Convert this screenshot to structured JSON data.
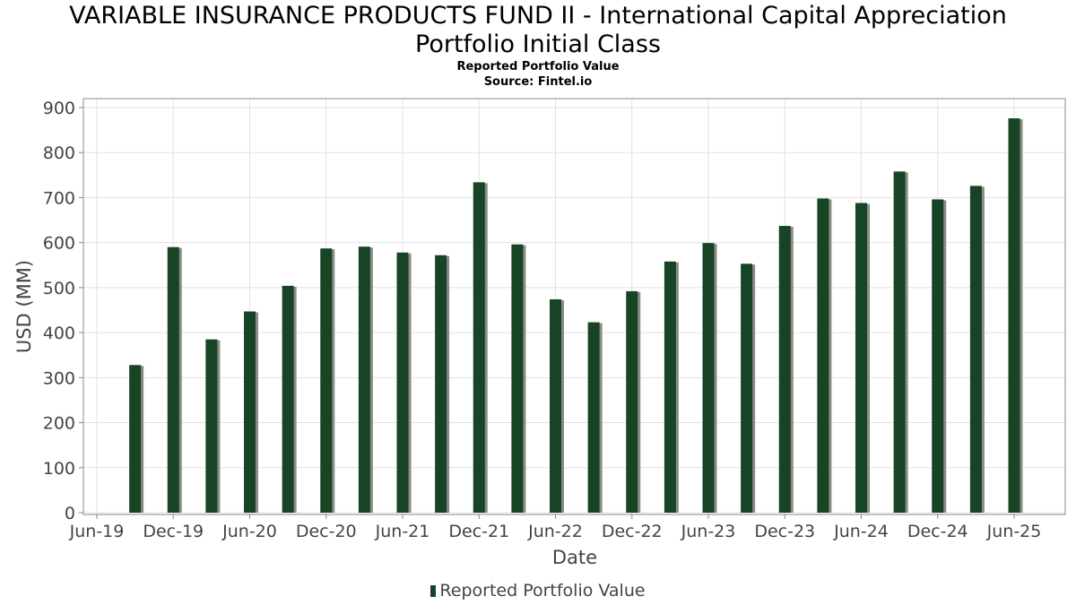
{
  "chart_data": {
    "type": "bar",
    "title_line1": "VARIABLE INSURANCE PRODUCTS FUND II - International Capital Appreciation",
    "title_line2": "Portfolio Initial Class",
    "subtitle": "Reported Portfolio Value",
    "source": "Source: Fintel.io",
    "xlabel": "Date",
    "ylabel": "USD (MM)",
    "ylim": [
      0,
      900
    ],
    "yticks": [
      0,
      100,
      200,
      300,
      400,
      500,
      600,
      700,
      800,
      900
    ],
    "xticks": [
      "Jun-19",
      "Dec-19",
      "Jun-20",
      "Dec-20",
      "Jun-21",
      "Dec-21",
      "Jun-22",
      "Dec-22",
      "Jun-23",
      "Dec-23",
      "Jun-24",
      "Dec-24",
      "Jun-25"
    ],
    "grid": true,
    "legend_position": "bottom",
    "bar_color": "#174424",
    "series": [
      {
        "name": "Reported Portfolio Value",
        "points": [
          {
            "x": "2019-09-30",
            "y": 328
          },
          {
            "x": "2019-12-31",
            "y": 590
          },
          {
            "x": "2020-03-31",
            "y": 385
          },
          {
            "x": "2020-06-30",
            "y": 447
          },
          {
            "x": "2020-09-30",
            "y": 504
          },
          {
            "x": "2020-12-31",
            "y": 587
          },
          {
            "x": "2021-03-31",
            "y": 591
          },
          {
            "x": "2021-06-30",
            "y": 578
          },
          {
            "x": "2021-09-30",
            "y": 572
          },
          {
            "x": "2021-12-31",
            "y": 734
          },
          {
            "x": "2022-03-31",
            "y": 596
          },
          {
            "x": "2022-06-30",
            "y": 474
          },
          {
            "x": "2022-09-30",
            "y": 423
          },
          {
            "x": "2022-12-31",
            "y": 492
          },
          {
            "x": "2023-03-31",
            "y": 558
          },
          {
            "x": "2023-06-30",
            "y": 599
          },
          {
            "x": "2023-09-30",
            "y": 553
          },
          {
            "x": "2023-12-31",
            "y": 637
          },
          {
            "x": "2024-03-31",
            "y": 698
          },
          {
            "x": "2024-06-30",
            "y": 688
          },
          {
            "x": "2024-09-30",
            "y": 758
          },
          {
            "x": "2024-12-31",
            "y": 696
          },
          {
            "x": "2025-03-31",
            "y": 726
          },
          {
            "x": "2025-06-30",
            "y": 876
          }
        ]
      }
    ]
  }
}
